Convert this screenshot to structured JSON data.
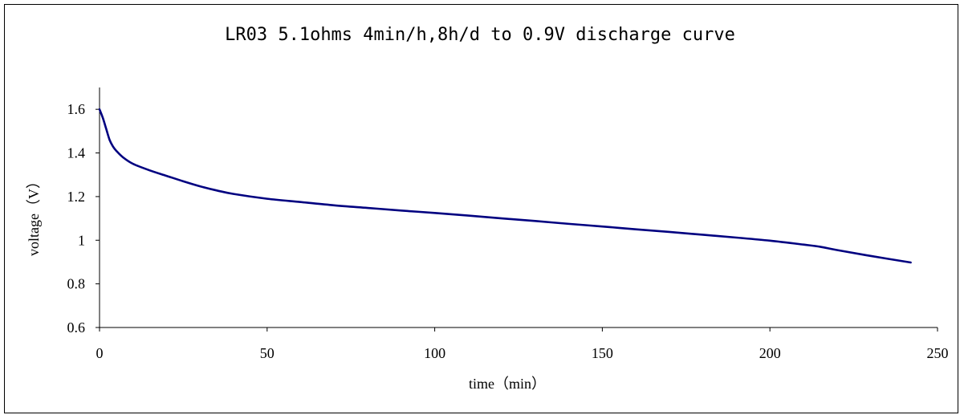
{
  "chart_data": {
    "type": "line",
    "title": "LR03  5.1ohms 4min/h,8h/d to 0.9V discharge curve",
    "xlabel": "time（min）",
    "ylabel": "voltage（V）",
    "xlim": [
      0,
      250
    ],
    "ylim": [
      0.6,
      1.7
    ],
    "x_ticks": [
      "0",
      "50",
      "100",
      "150",
      "200",
      "250"
    ],
    "y_ticks": [
      "0.6",
      "0.8",
      "1",
      "1.2",
      "1.4",
      "1.6"
    ],
    "grid": false,
    "legend": "none",
    "series": [
      {
        "color": "#000080",
        "points": [
          [
            0,
            1.6
          ],
          [
            1,
            1.56
          ],
          [
            2,
            1.51
          ],
          [
            3,
            1.46
          ],
          [
            4,
            1.43
          ],
          [
            5,
            1.41
          ],
          [
            7,
            1.38
          ],
          [
            10,
            1.35
          ],
          [
            15,
            1.32
          ],
          [
            20,
            1.295
          ],
          [
            25,
            1.27
          ],
          [
            30,
            1.247
          ],
          [
            35,
            1.228
          ],
          [
            40,
            1.212
          ],
          [
            50,
            1.19
          ],
          [
            60,
            1.175
          ],
          [
            70,
            1.16
          ],
          [
            80,
            1.148
          ],
          [
            90,
            1.136
          ],
          [
            100,
            1.125
          ],
          [
            110,
            1.113
          ],
          [
            120,
            1.1
          ],
          [
            130,
            1.088
          ],
          [
            140,
            1.075
          ],
          [
            150,
            1.063
          ],
          [
            160,
            1.05
          ],
          [
            170,
            1.038
          ],
          [
            180,
            1.025
          ],
          [
            190,
            1.012
          ],
          [
            200,
            0.998
          ],
          [
            210,
            0.98
          ],
          [
            215,
            0.97
          ],
          [
            220,
            0.955
          ],
          [
            230,
            0.928
          ],
          [
            242,
            0.898
          ]
        ]
      }
    ]
  }
}
